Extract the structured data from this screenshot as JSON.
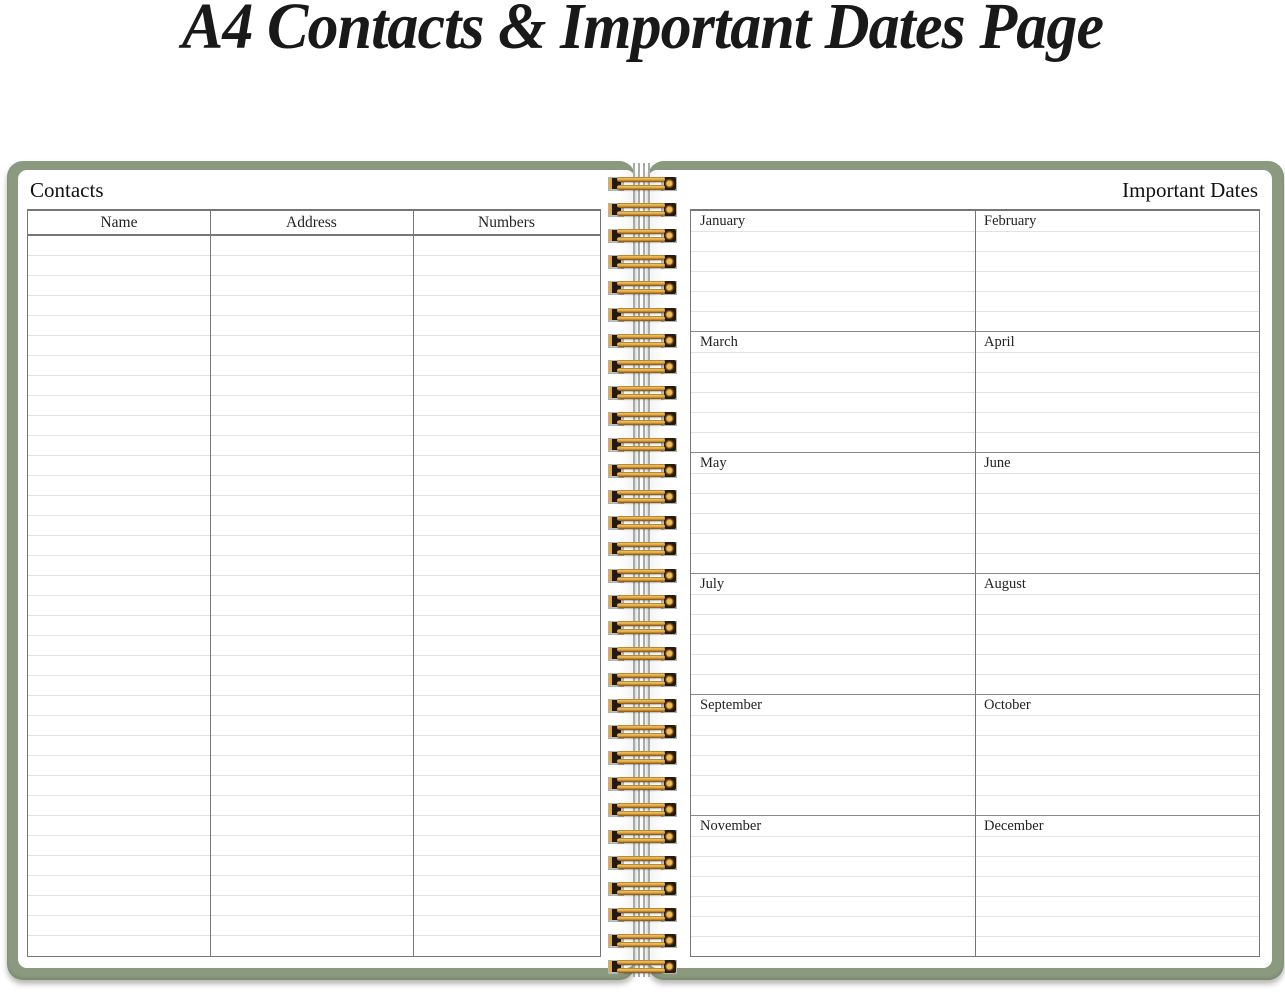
{
  "page_title": "A4 Contacts & Important Dates Page",
  "left_page": {
    "heading": "Contacts",
    "table": {
      "columns": [
        "Name",
        "Address",
        "Numbers"
      ],
      "row_count": 36
    }
  },
  "right_page": {
    "heading": "Important Dates",
    "months": [
      "January",
      "February",
      "March",
      "April",
      "May",
      "June",
      "July",
      "August",
      "September",
      "October",
      "November",
      "December"
    ],
    "rows_per_block": [
      6,
      6,
      6,
      6,
      6,
      7
    ]
  },
  "spiral": {
    "coil_count": 31
  },
  "colors": {
    "cover_green": "#8b9a7e",
    "coil_gold": "#d0952f",
    "table_border": "#767676",
    "ruled_line": "#e2e2e2"
  }
}
